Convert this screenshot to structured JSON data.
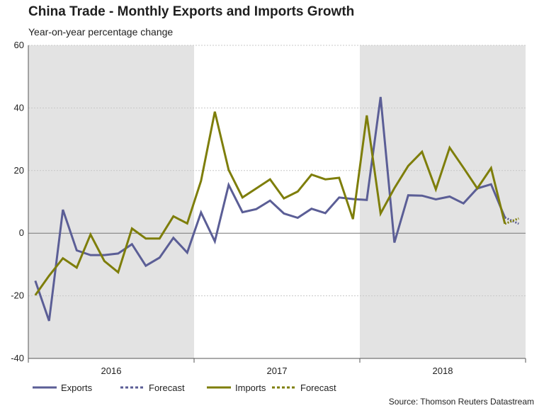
{
  "chart_data": {
    "type": "line",
    "title": "China Trade - Monthly Exports and Imports Growth",
    "subtitle": "Year-on-year percentage change",
    "ylabel": "",
    "xlabel": "",
    "ylim": [
      -40,
      60
    ],
    "yticks": [
      -40,
      -20,
      0,
      20,
      40,
      60
    ],
    "years": [
      "2016",
      "2017",
      "2018"
    ],
    "shaded_years": [
      "2016",
      "2018"
    ],
    "x_start": "2016-01",
    "x_end": "2018-12",
    "series": [
      {
        "name": "Exports",
        "color": "#5b5e96",
        "style": "solid",
        "start_index": 0,
        "values": [
          -15.2,
          -28,
          7.5,
          -5.5,
          -7,
          -7,
          -6.5,
          -3.5,
          -10.4,
          -7.8,
          -1.5,
          -6.2,
          6.6,
          -2.6,
          15.4,
          6.7,
          7.7,
          10.4,
          6.3,
          4.9,
          7.8,
          6.4,
          11.4,
          10.9,
          10.6,
          43.5,
          -3.0,
          12.1,
          12.0,
          10.8,
          11.7,
          9.5,
          14.3,
          15.6,
          5.0
        ]
      },
      {
        "name": "Forecast",
        "color": "#5b5e96",
        "style": "dotted",
        "start_index": 34,
        "values": [
          5.0,
          3.0
        ]
      },
      {
        "name": "Imports",
        "color": "#7e7e0a",
        "style": "solid",
        "start_index": 0,
        "values": [
          -19.8,
          -13.6,
          -8,
          -11,
          -0.4,
          -8.9,
          -12.5,
          1.5,
          -1.7,
          -1.7,
          5.4,
          3.1,
          16.7,
          38.8,
          20.2,
          11.4,
          14.3,
          17.2,
          11.1,
          13.3,
          18.7,
          17.2,
          17.7,
          4.5,
          37.6,
          6.3,
          14.4,
          21.5,
          26.0,
          14.0,
          27.3,
          20.9,
          14.3,
          20.8,
          3.0
        ]
      },
      {
        "name": "Forecast",
        "color": "#7e7e0a",
        "style": "dotted",
        "start_index": 34,
        "values": [
          3.0,
          4.7
        ]
      }
    ],
    "legend": [
      {
        "label": "Exports",
        "color": "#5b5e96",
        "style": "solid"
      },
      {
        "label": "Forecast",
        "color": "#5b5e96",
        "style": "dotted"
      },
      {
        "label": "Imports",
        "color": "#7e7e0a",
        "style": "solid"
      },
      {
        "label": "Forecast",
        "color": "#7e7e0a",
        "style": "dotted"
      }
    ],
    "legend_position": "bottom-left",
    "source": "Source: Thomson Reuters Datastream"
  },
  "colors": {
    "shade": "#e3e3e3",
    "grid": "#c8c8c8",
    "axis": "#555555",
    "zero_line": "#777777"
  }
}
